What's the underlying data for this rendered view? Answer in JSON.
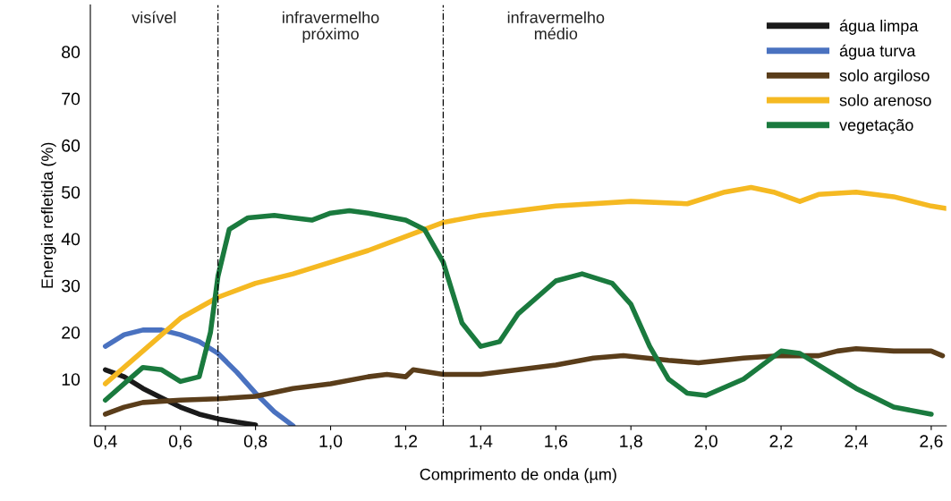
{
  "chart_data": {
    "type": "line",
    "xlabel": "Comprimento de onda (µm)",
    "ylabel": "Energia refletida (%)",
    "xlim": [
      0.36,
      2.64
    ],
    "ylim": [
      0,
      90
    ],
    "xticks": [
      {
        "value": 0.4,
        "label": "0,4"
      },
      {
        "value": 0.6,
        "label": "0,6"
      },
      {
        "value": 0.8,
        "label": "0,8"
      },
      {
        "value": 1.0,
        "label": "1,0"
      },
      {
        "value": 1.2,
        "label": "1,2"
      },
      {
        "value": 1.4,
        "label": "1,4"
      },
      {
        "value": 1.6,
        "label": "1,6"
      },
      {
        "value": 1.8,
        "label": "1,8"
      },
      {
        "value": 2.0,
        "label": "2,0"
      },
      {
        "value": 2.2,
        "label": "2,2"
      },
      {
        "value": 2.4,
        "label": "2,4"
      },
      {
        "value": 2.6,
        "label": "2,6"
      }
    ],
    "yticks": [
      10,
      20,
      30,
      40,
      50,
      60,
      70,
      80
    ],
    "grid": false,
    "legend": "top right",
    "marker": "none",
    "line_style": "solid",
    "ref_lines": [
      {
        "axis": "x",
        "value": 0.7,
        "color": "#000000",
        "line_style": "dashed"
      },
      {
        "axis": "x",
        "value": 1.3,
        "color": "#000000",
        "line_style": "dashed"
      }
    ],
    "annotations": [
      "visível",
      "infravermelho\npróximo",
      "infravermelho\nmédio"
    ],
    "series": [
      {
        "name": "água limpa",
        "color": "#1a1a1a",
        "x": [
          0.4,
          0.45,
          0.5,
          0.55,
          0.6,
          0.65,
          0.7,
          0.75,
          0.8
        ],
        "values": [
          12,
          10.5,
          8,
          6,
          4,
          2.5,
          1.5,
          0.8,
          0.2
        ]
      },
      {
        "name": "água turva",
        "color": "#4a72c0",
        "x": [
          0.4,
          0.45,
          0.5,
          0.55,
          0.6,
          0.65,
          0.7,
          0.75,
          0.8,
          0.85,
          0.9
        ],
        "values": [
          17,
          19.5,
          20.5,
          20.5,
          19.5,
          18,
          15.5,
          11.5,
          7,
          3,
          0
        ]
      },
      {
        "name": "solo argiloso",
        "color": "#5a3d1a",
        "x": [
          0.4,
          0.45,
          0.5,
          0.6,
          0.7,
          0.8,
          0.9,
          1.0,
          1.1,
          1.15,
          1.2,
          1.22,
          1.3,
          1.4,
          1.5,
          1.6,
          1.7,
          1.78,
          1.9,
          1.98,
          2.1,
          2.2,
          2.3,
          2.35,
          2.4,
          2.5,
          2.6,
          2.63
        ],
        "values": [
          2.5,
          4,
          5,
          5.5,
          5.8,
          6.3,
          8,
          9,
          10.5,
          11,
          10.5,
          12,
          11,
          11,
          12,
          13,
          14.5,
          15,
          14,
          13.5,
          14.5,
          15,
          15,
          16,
          16.5,
          16,
          16,
          15
        ]
      },
      {
        "name": "solo arenoso",
        "color": "#f5b922",
        "x": [
          0.4,
          0.5,
          0.6,
          0.7,
          0.8,
          0.9,
          1.0,
          1.1,
          1.2,
          1.3,
          1.4,
          1.6,
          1.8,
          1.95,
          2.05,
          2.12,
          2.18,
          2.25,
          2.3,
          2.4,
          2.5,
          2.6,
          2.64
        ],
        "values": [
          9,
          16,
          23,
          27.5,
          30.5,
          32.5,
          35,
          37.5,
          40.5,
          43.5,
          45,
          47,
          48,
          47.5,
          50,
          51,
          50,
          48,
          49.5,
          50,
          49,
          47,
          46.5
        ]
      },
      {
        "name": "vegetação",
        "color": "#1a7a3e",
        "x": [
          0.4,
          0.45,
          0.5,
          0.55,
          0.6,
          0.65,
          0.68,
          0.7,
          0.73,
          0.78,
          0.85,
          0.9,
          0.95,
          1.0,
          1.05,
          1.1,
          1.2,
          1.25,
          1.3,
          1.35,
          1.4,
          1.45,
          1.5,
          1.6,
          1.67,
          1.75,
          1.8,
          1.85,
          1.9,
          1.95,
          2.0,
          2.1,
          2.2,
          2.25,
          2.3,
          2.4,
          2.5,
          2.6
        ],
        "values": [
          5.5,
          9,
          12.5,
          12,
          9.5,
          10.5,
          20,
          32,
          42,
          44.5,
          45,
          44.5,
          44,
          45.5,
          46,
          45.5,
          44,
          42,
          35,
          22,
          17,
          18,
          24,
          31,
          32.5,
          30.5,
          26,
          17,
          10,
          7,
          6.5,
          10,
          16,
          15.5,
          13,
          8,
          4,
          2.5
        ]
      }
    ]
  }
}
